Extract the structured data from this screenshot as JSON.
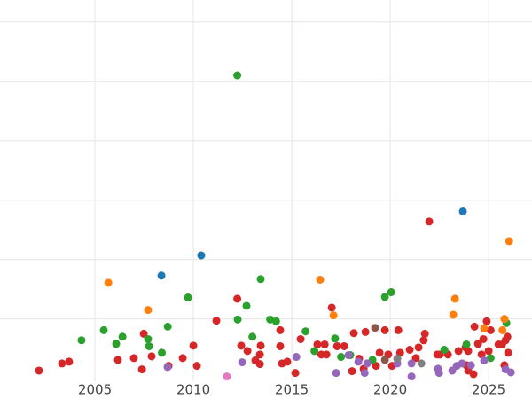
{
  "chart_data": {
    "type": "scatter",
    "xlim": [
      2000.18,
      2027.2
    ],
    "xticks": [
      2005,
      2010,
      2015,
      2020,
      2025
    ],
    "ylim": [
      -0.05,
      6.37
    ],
    "yticks": [
      1,
      2,
      3,
      4,
      5,
      6
    ],
    "ytick_labels": false,
    "grid": true,
    "series": [
      {
        "color": "#d62728",
        "x": [
          2002.16,
          2003.33,
          2003.69,
          2006.17,
          2006.98,
          2007.39,
          2007.48,
          2007.88,
          2008.74,
          2009.46,
          2010.0,
          2010.18,
          2011.17,
          2012.23,
          2012.43,
          2012.75,
          2013.15,
          2013.38,
          2013.38,
          2013.42,
          2014.41,
          2014.41,
          2014.5,
          2014.77,
          2015.18,
          2015.45,
          2016.3,
          2016.5,
          2016.67,
          2017.03,
          2016.76,
          2017.3,
          2017.66,
          2018.15,
          2018.06,
          2018.42,
          2018.65,
          2018.74,
          2019.28,
          2019.46,
          2019.73,
          2019.9,
          2020.09,
          2020.41,
          2020.5,
          2020.99,
          2021.3,
          2021.44,
          2021.7,
          2021.76,
          2021.98,
          2022.39,
          2022.52,
          2022.93,
          2023.47,
          2023.83,
          2023.96,
          2023.87,
          2023.96,
          2024.23,
          2024.28,
          2024.46,
          2024.64,
          2024.73,
          2024.9,
          2025.1,
          2025.0,
          2025.5,
          2025.68,
          2025.8,
          2025.86,
          2025.99,
          2025.95
        ],
        "values": [
          0.13,
          0.25,
          0.28,
          0.31,
          0.34,
          0.15,
          0.75,
          0.37,
          0.21,
          0.34,
          0.55,
          0.21,
          0.97,
          1.34,
          0.55,
          0.46,
          0.3,
          0.4,
          0.24,
          0.55,
          0.81,
          0.54,
          0.25,
          0.28,
          0.09,
          0.66,
          0.57,
          0.4,
          0.57,
          1.19,
          0.4,
          0.54,
          0.54,
          0.76,
          0.12,
          0.33,
          0.16,
          0.78,
          0.21,
          0.43,
          0.81,
          0.4,
          0.21,
          0.81,
          0.43,
          0.48,
          0.34,
          0.52,
          0.64,
          0.75,
          2.64,
          0.4,
          0.4,
          0.4,
          0.46,
          0.52,
          0.46,
          0.22,
          0.13,
          0.07,
          0.87,
          0.58,
          0.4,
          0.66,
          0.96,
          0.81,
          0.46,
          0.57,
          0.57,
          0.22,
          0.64,
          0.43,
          0.7
        ]
      },
      {
        "color": "#2ca02c",
        "x": [
          2012.23,
          2013.42,
          2012.7,
          2012.25,
          2009.73,
          2004.32,
          2005.45,
          2006.08,
          2006.4,
          2007.7,
          2007.75,
          2008.7,
          2008.4,
          2013.0,
          2013.9,
          2014.2,
          2015.7,
          2016.15,
          2017.2,
          2017.5,
          2019.73,
          2020.05,
          2017.97,
          2019.1,
          2022.75,
          2023.87,
          2025.9,
          2025.1
        ],
        "values": [
          5.1,
          1.67,
          1.22,
          0.99,
          1.36,
          0.64,
          0.81,
          0.58,
          0.7,
          0.66,
          0.54,
          0.87,
          0.43,
          0.7,
          0.99,
          0.96,
          0.79,
          0.46,
          0.67,
          0.36,
          1.37,
          1.45,
          0.39,
          0.31,
          0.48,
          0.57,
          0.93,
          0.34
        ]
      },
      {
        "color": "#1f77b4",
        "x": [
          2008.38,
          2010.4,
          2023.69
        ],
        "values": [
          1.73,
          2.07,
          2.81
        ]
      },
      {
        "color": "#ff7f0e",
        "x": [
          2005.68,
          2007.7,
          2016.44,
          2017.12,
          2023.29,
          2023.2,
          2026.04,
          2025.8,
          2025.7,
          2024.77
        ],
        "values": [
          1.61,
          1.15,
          1.66,
          1.06,
          1.34,
          1.07,
          2.31,
          1.0,
          0.81,
          0.84
        ]
      },
      {
        "color": "#9467bd",
        "x": [
          2008.69,
          2012.48,
          2015.23,
          2017.25,
          2017.88,
          2018.38,
          2018.7,
          2018.83,
          2020.36,
          2021.08,
          2021.08,
          2022.43,
          2022.48,
          2023.15,
          2023.38,
          2023.65,
          2024.1,
          2024.77,
          2025.86,
          2026.13
        ],
        "values": [
          0.19,
          0.27,
          0.36,
          0.09,
          0.39,
          0.28,
          0.09,
          0.25,
          0.25,
          0.03,
          0.25,
          0.16,
          0.09,
          0.13,
          0.21,
          0.25,
          0.22,
          0.3,
          0.15,
          0.1
        ]
      },
      {
        "color": "#e377c2",
        "x": [
          2011.7
        ],
        "values": [
          0.03
        ]
      },
      {
        "color": "#8c564b",
        "x": [
          2019.23,
          2019.73
        ],
        "values": [
          0.85,
          0.31
        ]
      },
      {
        "color": "#7f7f7f",
        "x": [
          2021.58,
          2020.36
        ],
        "values": [
          0.25,
          0.33
        ]
      }
    ]
  }
}
